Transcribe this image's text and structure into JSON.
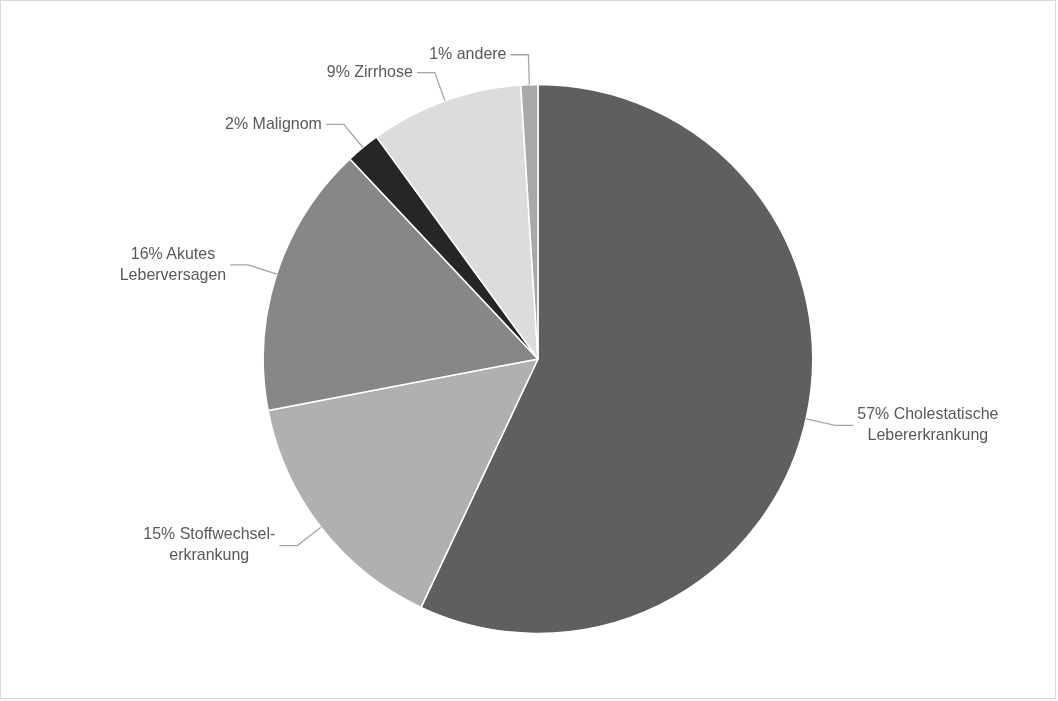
{
  "chart_data": {
    "type": "pie",
    "categories": [
      "Cholestatische Lebererkrankung",
      "Stoffwechsel-erkrankung",
      "Akutes Leberversagen",
      "Malignom",
      "Zirrhose",
      "andere"
    ],
    "values": [
      57,
      15,
      16,
      2,
      9,
      1
    ],
    "value_labels": [
      "57%",
      "15%",
      "16%",
      "2%",
      "9%",
      "1%"
    ],
    "colors": [
      "#5f5f5f",
      "#b0b0b0",
      "#878787",
      "#262626",
      "#dcdcdc",
      "#a8a8a8"
    ]
  }
}
